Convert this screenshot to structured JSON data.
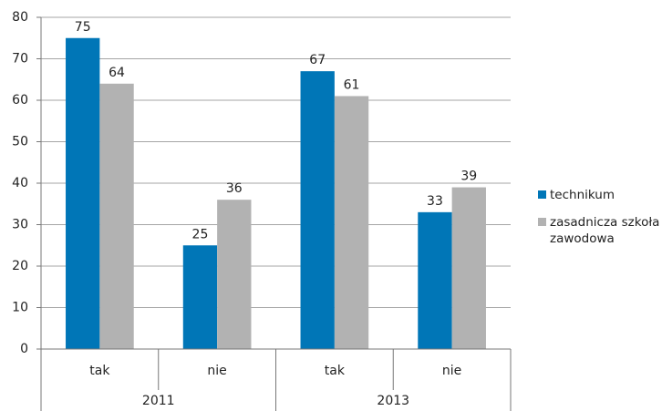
{
  "chart_data": {
    "type": "bar",
    "groups": [
      {
        "name": "2011",
        "categories": [
          "tak",
          "nie"
        ]
      },
      {
        "name": "2013",
        "categories": [
          "tak",
          "nie"
        ]
      }
    ],
    "series": [
      {
        "name": "technikum",
        "color": "#0076b7",
        "values": [
          75,
          25,
          67,
          33
        ]
      },
      {
        "name": "zasadnicza szkoła zawodowa",
        "color": "#b2b2b2",
        "values": [
          64,
          36,
          61,
          39
        ]
      }
    ],
    "ylim": [
      0,
      80
    ],
    "yticks": [
      0,
      10,
      20,
      30,
      40,
      50,
      60,
      70,
      80
    ],
    "grid": true,
    "legend": "right"
  }
}
